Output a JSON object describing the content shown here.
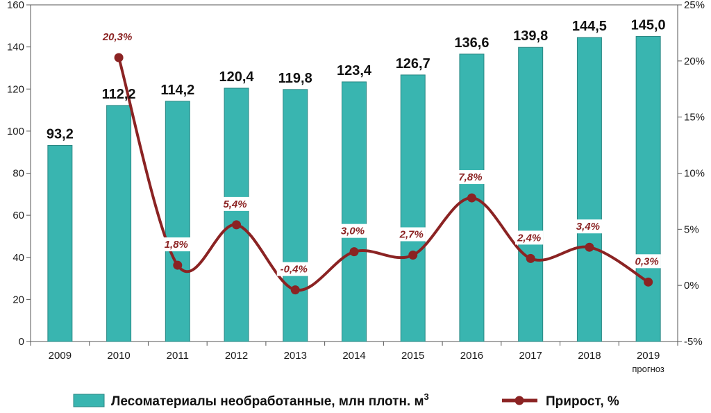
{
  "colors": {
    "bar_fill": "#39b5b0",
    "bar_stroke": "#2a8783",
    "line": "#8b2323",
    "axis": "#555555",
    "grid": "#888888",
    "label_bg": "#ffffff"
  },
  "chart_data": {
    "type": "bar",
    "categories": [
      "2009",
      "2010",
      "2011",
      "2012",
      "2013",
      "2014",
      "2015",
      "2016",
      "2017",
      "2018",
      "2019"
    ],
    "category_notes": [
      "",
      "",
      "",
      "",
      "",
      "",
      "",
      "",
      "",
      "",
      "прогноз"
    ],
    "series": [
      {
        "name": "Лесоматериалы необработанные, млн плотн. м",
        "name_superscript": "3",
        "type": "bar",
        "axis": "left",
        "values": [
          93.2,
          112.2,
          114.2,
          120.4,
          119.8,
          123.4,
          126.7,
          136.6,
          139.8,
          144.5,
          145.0
        ],
        "labels": [
          "93,2",
          "112,2",
          "114,2",
          "120,4",
          "119,8",
          "123,4",
          "126,7",
          "136,6",
          "139,8",
          "144,5",
          "145,0"
        ]
      },
      {
        "name": "Прирост, %",
        "type": "line",
        "axis": "right",
        "smooth": true,
        "values": [
          null,
          20.3,
          1.8,
          5.4,
          -0.4,
          3.0,
          2.7,
          7.8,
          2.4,
          3.4,
          0.3
        ],
        "labels": [
          "",
          "20,3%",
          "1,8%",
          "5,4%",
          "-0,4%",
          "3,0%",
          "2,7%",
          "7,8%",
          "2,4%",
          "3,4%",
          "0,3%"
        ]
      }
    ],
    "left_axis": {
      "ylim": [
        0,
        160
      ],
      "ticks": [
        "0",
        "20",
        "40",
        "60",
        "80",
        "100",
        "120",
        "140",
        "160"
      ]
    },
    "right_axis": {
      "ylim": [
        -5,
        25
      ],
      "ticks": [
        "-5%",
        "0%",
        "5%",
        "10%",
        "15%",
        "20%",
        "25%"
      ]
    },
    "grid": false,
    "legend_placement": "bottom"
  }
}
